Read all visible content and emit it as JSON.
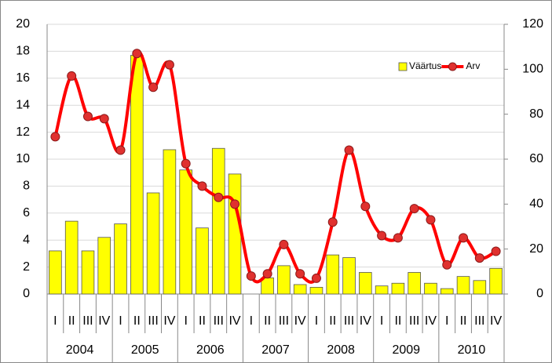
{
  "chart_data": {
    "type": "bar_line",
    "categories": [
      "I",
      "II",
      "III",
      "IV",
      "I",
      "II",
      "III",
      "IV",
      "I",
      "II",
      "III",
      "IV",
      "I",
      "II",
      "III",
      "IV",
      "I",
      "II",
      "III",
      "IV",
      "I",
      "II",
      "III",
      "IV",
      "I",
      "II",
      "III",
      "IV"
    ],
    "groups": [
      "2004",
      "2005",
      "2006",
      "2007",
      "2008",
      "2009",
      "2010"
    ],
    "series": [
      {
        "name": "Väärtus",
        "type": "bar",
        "color": "#ffff00",
        "axis": "y",
        "values": [
          3.2,
          5.4,
          3.2,
          4.2,
          5.2,
          17.7,
          7.5,
          10.7,
          9.2,
          4.9,
          10.8,
          8.9,
          0,
          1.2,
          2.1,
          0.7,
          0.5,
          2.9,
          2.7,
          1.6,
          0.6,
          0.8,
          1.6,
          0.8,
          0.4,
          1.3,
          1.0,
          1.9
        ]
      },
      {
        "name": "Arv",
        "type": "line",
        "color": "#ff0000",
        "axis": "y2",
        "values": [
          70,
          97,
          79,
          78,
          64,
          107,
          92,
          102,
          58,
          48,
          43,
          40,
          8,
          9,
          22,
          9,
          7,
          32,
          64,
          39,
          26,
          25,
          38,
          33,
          13,
          25,
          16,
          19
        ]
      }
    ],
    "ylim": [
      0,
      20
    ],
    "yticks": [
      0,
      2,
      4,
      6,
      8,
      10,
      12,
      14,
      16,
      18,
      20
    ],
    "y2lim": [
      0,
      120
    ],
    "y2ticks": [
      0,
      20,
      40,
      60,
      80,
      100,
      120
    ],
    "grid": true,
    "legend": "upper right"
  }
}
